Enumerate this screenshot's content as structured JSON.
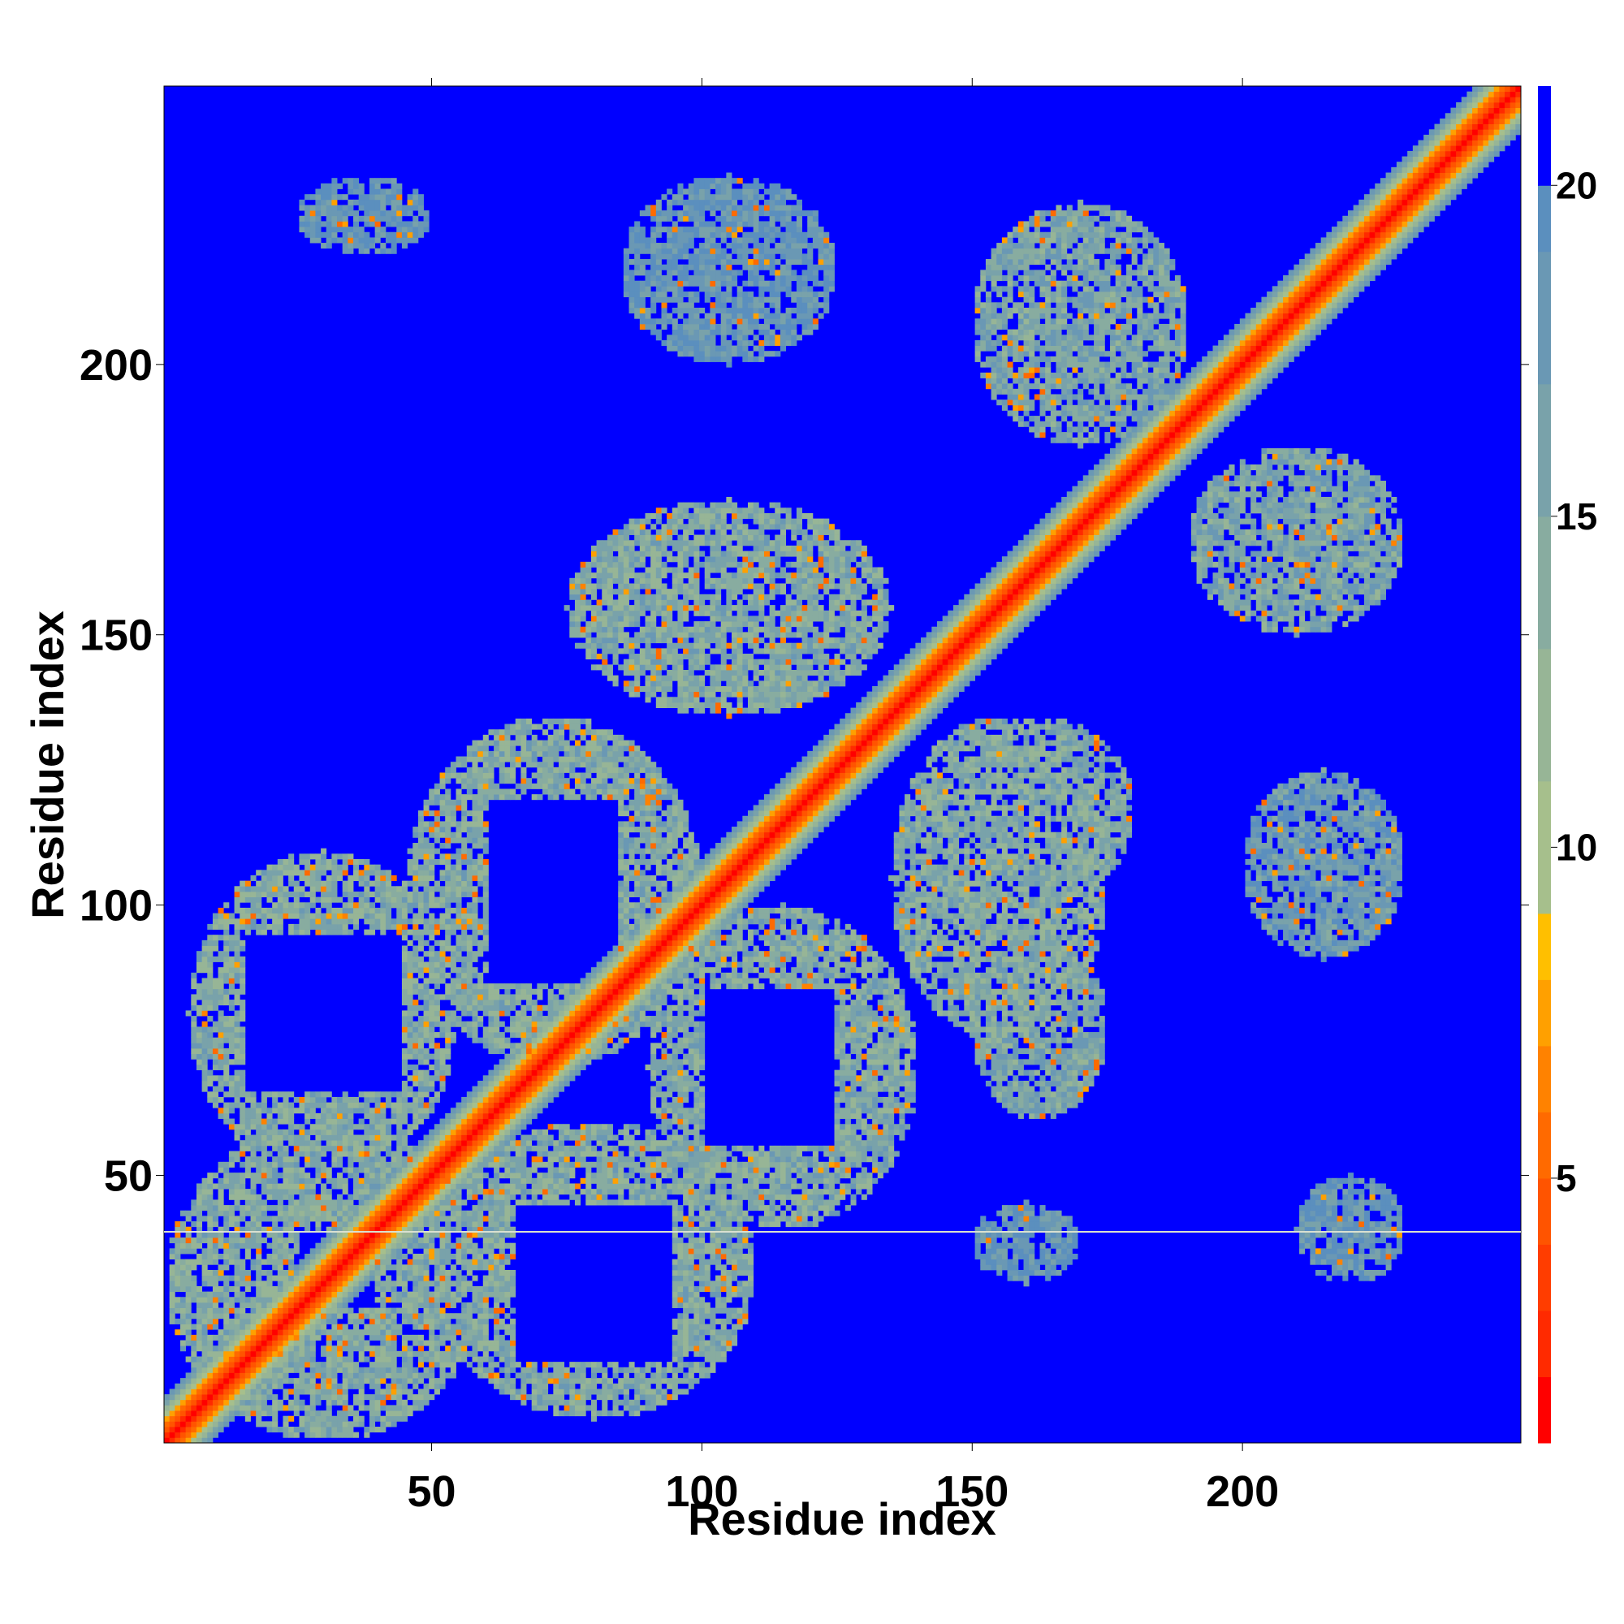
{
  "chart_data": {
    "type": "heatmap",
    "title": "",
    "xlabel": "Residue index",
    "ylabel": "Residue index",
    "n_residues": 251,
    "xlim": [
      1,
      251
    ],
    "ylim": [
      1,
      251
    ],
    "xticks": [
      50,
      100,
      150,
      200
    ],
    "yticks": [
      50,
      100,
      150,
      200
    ],
    "colorbar": {
      "ticks": [
        5,
        10,
        15,
        20
      ],
      "range": [
        1,
        21.5
      ],
      "bins": [
        {
          "max": 2,
          "color": "#ff0000"
        },
        {
          "max": 3,
          "color": "#ff2a00"
        },
        {
          "max": 4,
          "color": "#ff3d00"
        },
        {
          "max": 5,
          "color": "#ff5400"
        },
        {
          "max": 6,
          "color": "#ff6a00"
        },
        {
          "max": 7,
          "color": "#ff8200"
        },
        {
          "max": 8,
          "color": "#ffa000"
        },
        {
          "max": 9,
          "color": "#ffbf00"
        },
        {
          "max": 11,
          "color": "#a6bf8c"
        },
        {
          "max": 13,
          "color": "#97b596"
        },
        {
          "max": 15,
          "color": "#88aca0"
        },
        {
          "max": 17,
          "color": "#79a2aa"
        },
        {
          "max": 19,
          "color": "#6a98b4"
        },
        {
          "max": 20,
          "color": "#5b8fbe"
        },
        {
          "max": 21.5,
          "color": "#0000ff"
        }
      ]
    },
    "background_value": 21,
    "diagonal_band": [
      {
        "offset": 0,
        "value": 1
      },
      {
        "offset": 1,
        "value": 3
      },
      {
        "offset": 2,
        "value": 5
      },
      {
        "offset": 3,
        "value": 6
      },
      {
        "offset": 4,
        "value": 8
      },
      {
        "offset": 5,
        "value": 10
      },
      {
        "offset": 6,
        "value": 12
      },
      {
        "offset": 7,
        "value": 16
      },
      {
        "offset": 8,
        "value": 19
      }
    ],
    "contact_regions": [
      {
        "x": [
          1,
          60
        ],
        "y": [
          1,
          60
        ],
        "value": 11,
        "hole": [
          25,
          40
        ]
      },
      {
        "x": [
          5,
          55
        ],
        "y": [
          50,
          110
        ],
        "value": 11,
        "hole": [
          15,
          45,
          65,
          95
        ]
      },
      {
        "x": [
          50,
          110
        ],
        "y": [
          5,
          60
        ],
        "value": 11,
        "hole": [
          65,
          95,
          15,
          45
        ]
      },
      {
        "x": [
          45,
          100
        ],
        "y": [
          70,
          135
        ],
        "value": 11,
        "hole": [
          60,
          85,
          85,
          120
        ]
      },
      {
        "x": [
          90,
          140
        ],
        "y": [
          40,
          100
        ],
        "value": 11,
        "hole": [
          100,
          125,
          55,
          85
        ]
      },
      {
        "x": [
          75,
          135
        ],
        "y": [
          135,
          175
        ],
        "value": 11
      },
      {
        "x": [
          135,
          175
        ],
        "y": [
          75,
          135
        ],
        "value": 11
      },
      {
        "x": [
          150,
          175
        ],
        "y": [
          60,
          95
        ],
        "value": 12
      },
      {
        "x": [
          145,
          180
        ],
        "y": [
          100,
          135
        ],
        "value": 12
      },
      {
        "x": [
          200,
          230
        ],
        "y": [
          90,
          125
        ],
        "value": 14
      },
      {
        "x": [
          150,
          190
        ],
        "y": [
          185,
          230
        ],
        "value": 12
      },
      {
        "x": [
          190,
          230
        ],
        "y": [
          150,
          185
        ],
        "value": 12
      },
      {
        "x": [
          85,
          125
        ],
        "y": [
          200,
          235
        ],
        "value": 15
      },
      {
        "x": [
          25,
          50
        ],
        "y": [
          220,
          235
        ],
        "value": 15
      },
      {
        "x": [
          210,
          230
        ],
        "y": [
          30,
          50
        ],
        "value": 15
      },
      {
        "x": [
          150,
          170
        ],
        "y": [
          30,
          45
        ],
        "value": 15
      }
    ]
  }
}
